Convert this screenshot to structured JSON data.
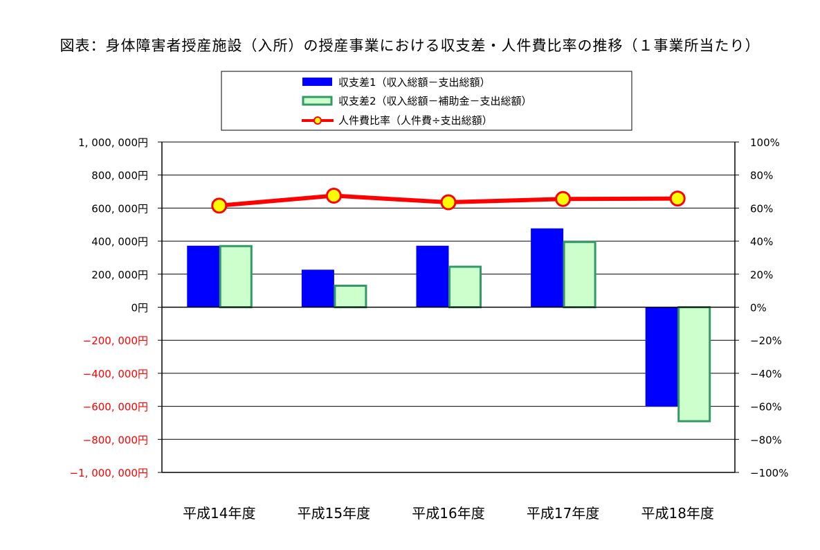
{
  "chart_data": {
    "type": "bar",
    "title": "図表：身体障害者授産施設（入所）の授産事業における収支差・人件費比率の推移（１事業所当たり）",
    "categories": [
      "平成14年度",
      "平成15年度",
      "平成16年度",
      "平成17年度",
      "平成18年度"
    ],
    "series": [
      {
        "name": "収支差1（収入総額－支出総額）",
        "type": "bar",
        "axis": "left",
        "color": "#0000ff",
        "border": "#0000ff",
        "values": [
          370000,
          225000,
          370000,
          475000,
          -600000
        ]
      },
      {
        "name": "収支差2（収入総額－補助金－支出総額）",
        "type": "bar",
        "axis": "left",
        "color": "#ccffcc",
        "border": "#339966",
        "values": [
          370000,
          130000,
          245000,
          395000,
          -690000
        ]
      },
      {
        "name": "人件費比率（人件費÷支出総額）",
        "type": "line",
        "axis": "right",
        "color": "#ff0000",
        "marker": "#ffff00",
        "values": [
          61.5,
          67.5,
          63.5,
          65.5,
          65.8
        ]
      }
    ],
    "y_left": {
      "ylim": [
        -1000000,
        1000000
      ],
      "tick_labels": [
        "1, 000, 000円",
        "800, 000円",
        "600, 000円",
        "400, 000円",
        "200, 000円",
        "0円",
        "−200, 000円",
        "−400, 000円",
        "−600, 000円",
        "−800, 000円",
        "−1, 000, 000円"
      ],
      "positive_color": "#000000",
      "negative_color": "#ff0000"
    },
    "y_right": {
      "ylim": [
        -100,
        100
      ],
      "tick_labels": [
        "100%",
        "80%",
        "60%",
        "40%",
        "20%",
        "0%",
        "−20%",
        "−40%",
        "−60%",
        "−80%",
        "−100%"
      ]
    },
    "grid": true,
    "legend_position": "top-center"
  }
}
